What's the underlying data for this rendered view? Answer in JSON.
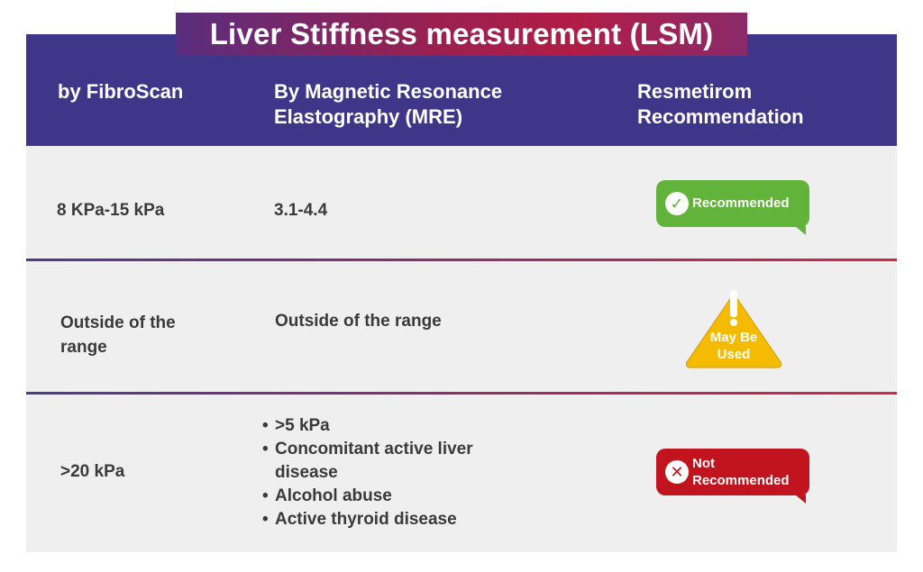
{
  "title": "Liver Stiffness measurement (LSM)",
  "header": {
    "col1": "by FibroScan",
    "col2_line1": "By Magnetic Resonance",
    "col2_line2": "Elastography (MRE)",
    "col3_line1": "Resmetirom",
    "col3_line2": "Recommendation"
  },
  "rows": [
    {
      "fibroscan": "8 KPa-15 kPa",
      "mre": "3.1-4.4",
      "recommendation": {
        "text": "Recommended",
        "icon": "check-circle-icon",
        "color": "#62b33a"
      }
    },
    {
      "fibroscan_line1": "Outside of the",
      "fibroscan_line2": "range",
      "mre": "Outside of the range",
      "recommendation": {
        "text_line1": "May Be",
        "text_line2": "Used",
        "icon": "warning-triangle-icon",
        "color": "#f5bb00"
      }
    },
    {
      "fibroscan": ">20 kPa",
      "mre_items": [
        ">5 kPa",
        "Concomitant active liver",
        "disease",
        "Alcohol abuse",
        "Active thyroid disease"
      ],
      "recommendation": {
        "text_line1": "Not",
        "text_line2": "Recommended",
        "icon": "x-circle-icon",
        "color": "#c1141f"
      }
    }
  ],
  "colors": {
    "header_bg": "#3f3589",
    "row_bg": "#efefef",
    "title_gradient_start": "#5a2d7e",
    "title_gradient_end": "#b21c46"
  }
}
